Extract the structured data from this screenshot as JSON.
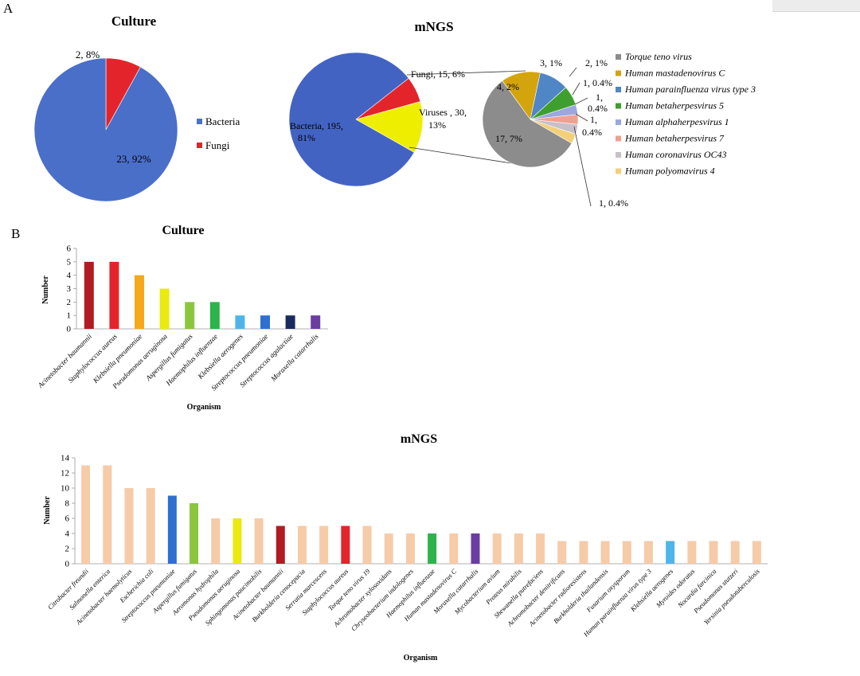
{
  "panel_labels": {
    "a": "A",
    "b": "B"
  },
  "chart_data": [
    {
      "type": "pie",
      "title": "Culture",
      "slices": [
        {
          "name": "Bacteria",
          "value": 23,
          "label": "23, 92%",
          "color": "#4a6fc8"
        },
        {
          "name": "Fungi",
          "value": 2,
          "label": "2, 8%",
          "color": "#e3252b"
        }
      ],
      "legend": [
        "Bacteria",
        "Fungi"
      ],
      "legend_position": "right"
    },
    {
      "type": "pie",
      "title": "mNGS",
      "slices": [
        {
          "name": "Bacteria",
          "value": 195,
          "label": "Bacteria, 195, 81%",
          "color": "#4363c3"
        },
        {
          "name": "Fungi",
          "value": 15,
          "label": "Fungi, 15, 6%",
          "color": "#e3252b"
        },
        {
          "name": "Viruses",
          "value": 30,
          "label": "Viruses , 30, 13%",
          "color": "#eeee00"
        }
      ]
    },
    {
      "type": "pie",
      "subtype": "pie-of-pie (viruses breakdown)",
      "slices": [
        {
          "name": "Torque teno virus",
          "value": 17,
          "label": "17, 7%",
          "color": "#8c8c8c"
        },
        {
          "name": "Human mastadenovirus C",
          "value": 4,
          "label": "4, 2%",
          "color": "#d4a40d"
        },
        {
          "name": "Human parainfluenza virus type 3",
          "value": 3,
          "label": "3, 1%",
          "color": "#4f86c6"
        },
        {
          "name": "Human betaherpesvirus 5",
          "value": 2,
          "label": "2, 1%",
          "color": "#3f9f2e"
        },
        {
          "name": "Human alphaherpesvirus 1",
          "value": 1,
          "label": "1, 0.4%",
          "color": "#9aa7e0"
        },
        {
          "name": "Human betaherpesvirus 7",
          "value": 1,
          "label": "1, 0.4%",
          "color": "#f0a090"
        },
        {
          "name": "Human coronavirus OC43",
          "value": 1,
          "label": "1, 0.4%",
          "color": "#c8c0c8"
        },
        {
          "name": "Human polyomavirus 4",
          "value": 1,
          "label": "1, 0.4%",
          "color": "#f3cf7a"
        }
      ],
      "legend_position": "right"
    },
    {
      "type": "bar",
      "title": "Culture",
      "xlabel": "Organism",
      "ylabel": "Number",
      "ylim": [
        0,
        6
      ],
      "yticks": [
        0,
        1,
        2,
        3,
        4,
        5,
        6
      ],
      "categories": [
        "Acinetobacter baumannii",
        "Staphylococcus aureus",
        "Klebsiella pneumoniae",
        "Pseudomonas aeruginosa",
        "Aspergillus fumigatus",
        "Haemophilus influenzae",
        "Klebsiella aerogenes",
        "Streptococcus pneumoniae",
        "Streptococcus agalactiae",
        "Moraxella catarrhalis"
      ],
      "values": [
        5,
        5,
        4,
        3,
        2,
        2,
        1,
        1,
        1,
        1
      ],
      "colors": [
        "#b01c22",
        "#e3252b",
        "#f5a81c",
        "#eaea10",
        "#8cc63f",
        "#2db34a",
        "#4fb4ea",
        "#2e6fd0",
        "#1b2a5e",
        "#6a3ea0"
      ]
    },
    {
      "type": "bar",
      "title": "mNGS",
      "xlabel": "Organism",
      "ylabel": "Number",
      "ylim": [
        0,
        14
      ],
      "yticks": [
        0,
        2,
        4,
        6,
        8,
        10,
        12,
        14
      ],
      "categories": [
        "Citrobacter freundii",
        "Salmonella enterica",
        "Acinetobacter haemolyticus",
        "Escherichia coli",
        "Streptococcus pneumoniae",
        "Aspergillus fumigatus",
        "Aeromonas hydrophila",
        "Pseudomonas aeruginosa",
        "Sphingomonas paucimobilis",
        "Acinetobacter baumannii",
        "Burkholderia cenocepacia",
        "Serratia marcescens",
        "Staphylococcus aureus",
        "Torque teno virus 19",
        "Achromobacter xylosoxidans",
        "Chryseobacterium indologenes",
        "Haemophilus influenzae",
        "Human mastadenovirus C",
        "Moraxella catarrhalis",
        "Mycobacterium avium",
        "Proteus mirabilis",
        "Shewanella putrefaciens",
        "Achromobacter denitrificans",
        "Acinetobacter radioresistens",
        "Burkholderia thailandensis",
        "Fusarium oxysporum",
        "Human parainfluenza virus type 3",
        "Klebsiella aerogenes",
        "Myroides odoratus",
        "Nocardia farcinica",
        "Pseudomonas stutzeri",
        "Yersinia pseudotuberculosis"
      ],
      "values": [
        13,
        13,
        10,
        10,
        9,
        8,
        6,
        6,
        6,
        5,
        5,
        5,
        5,
        5,
        4,
        4,
        4,
        4,
        4,
        4,
        4,
        4,
        3,
        3,
        3,
        3,
        3,
        3,
        3,
        3,
        3,
        3
      ],
      "colors": [
        "#f6cba8",
        "#f6cba8",
        "#f6cba8",
        "#f6cba8",
        "#2e6fd0",
        "#8cc63f",
        "#f6cba8",
        "#eaea10",
        "#f6cba8",
        "#b01c22",
        "#f6cba8",
        "#f6cba8",
        "#e3252b",
        "#f6cba8",
        "#f6cba8",
        "#f6cba8",
        "#2db34a",
        "#f6cba8",
        "#6a3ea0",
        "#f6cba8",
        "#f6cba8",
        "#f6cba8",
        "#f6cba8",
        "#f6cba8",
        "#f6cba8",
        "#f6cba8",
        "#f6cba8",
        "#4fb4ea",
        "#f6cba8",
        "#f6cba8",
        "#f6cba8",
        "#f6cba8"
      ]
    }
  ]
}
